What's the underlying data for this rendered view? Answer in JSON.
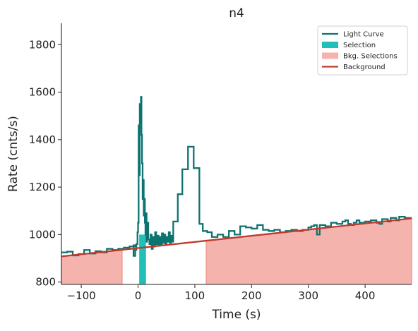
{
  "chart_data": {
    "type": "line",
    "title": "n4",
    "xlabel": "Time (s)",
    "ylabel": "Rate (cnts/s)",
    "xlim": [
      -135,
      482
    ],
    "ylim": [
      790,
      1890
    ],
    "x_ticks": [
      -100,
      0,
      100,
      200,
      300,
      400
    ],
    "y_ticks": [
      800,
      1000,
      1200,
      1400,
      1600,
      1800
    ],
    "legend_position": "top-right",
    "legend": [
      {
        "label": "Light Curve",
        "kind": "line",
        "color": "#0d7370"
      },
      {
        "label": "Selection",
        "kind": "patch",
        "color": "#20c0b8"
      },
      {
        "label": "Bkg. Selections",
        "kind": "patch",
        "color": "#f4b4ad"
      },
      {
        "label": "Background",
        "kind": "line",
        "color": "#c0392b"
      }
    ],
    "selection": {
      "range": [
        2,
        14
      ],
      "color": "#20c0b8"
    },
    "bkg_selections": {
      "ranges": [
        [
          -135,
          -28
        ],
        [
          120,
          482
        ]
      ],
      "color": "#f4b4ad",
      "edge_color": "#e8877d"
    },
    "background": {
      "x": [
        -135,
        482
      ],
      "y": [
        908,
        1068
      ],
      "color": "#c0392b"
    },
    "light_curve": {
      "color": "#0d7370",
      "steps": [
        [
          -135,
          925
        ],
        [
          -125,
          928
        ],
        [
          -115,
          912
        ],
        [
          -105,
          918
        ],
        [
          -95,
          935
        ],
        [
          -85,
          920
        ],
        [
          -75,
          930
        ],
        [
          -65,
          925
        ],
        [
          -55,
          940
        ],
        [
          -45,
          935
        ],
        [
          -35,
          940
        ],
        [
          -25,
          945
        ],
        [
          -15,
          950
        ],
        [
          -5,
          955
        ],
        [
          -8,
          910
        ],
        [
          -5,
          935
        ],
        [
          -3,
          960
        ],
        [
          -1,
          1010
        ],
        [
          0,
          1050
        ],
        [
          1,
          1460
        ],
        [
          2,
          1250
        ],
        [
          3,
          1550
        ],
        [
          4,
          1470
        ],
        [
          5,
          1580
        ],
        [
          6,
          1420
        ],
        [
          7,
          1300
        ],
        [
          8,
          1150
        ],
        [
          9,
          1230
        ],
        [
          10,
          1080
        ],
        [
          11,
          1150
        ],
        [
          12,
          1050
        ],
        [
          13,
          1000
        ],
        [
          14,
          1090
        ],
        [
          15,
          970
        ],
        [
          16,
          1050
        ],
        [
          18,
          980
        ],
        [
          20,
          960
        ],
        [
          22,
          1000
        ],
        [
          24,
          940
        ],
        [
          26,
          990
        ],
        [
          28,
          950
        ],
        [
          30,
          1010
        ],
        [
          32,
          960
        ],
        [
          34,
          995
        ],
        [
          36,
          955
        ],
        [
          38,
          990
        ],
        [
          40,
          960
        ],
        [
          42,
          1005
        ],
        [
          44,
          965
        ],
        [
          46,
          1000
        ],
        [
          48,
          960
        ],
        [
          50,
          990
        ],
        [
          52,
          970
        ],
        [
          54,
          1010
        ],
        [
          56,
          965
        ],
        [
          58,
          995
        ],
        [
          60,
          970
        ],
        [
          62,
          1055
        ],
        [
          70,
          1170
        ],
        [
          78,
          1275
        ],
        [
          88,
          1370
        ],
        [
          98,
          1280
        ],
        [
          108,
          1045
        ],
        [
          114,
          1015
        ],
        [
          122,
          1010
        ],
        [
          130,
          990
        ],
        [
          140,
          1000
        ],
        [
          150,
          990
        ],
        [
          160,
          1015
        ],
        [
          170,
          1000
        ],
        [
          180,
          1035
        ],
        [
          190,
          1030
        ],
        [
          200,
          1025
        ],
        [
          210,
          1040
        ],
        [
          220,
          1020
        ],
        [
          230,
          1015
        ],
        [
          240,
          1020
        ],
        [
          250,
          1010
        ],
        [
          260,
          1015
        ],
        [
          270,
          1020
        ],
        [
          280,
          1015
        ],
        [
          290,
          1020
        ],
        [
          300,
          1030
        ],
        [
          305,
          1035
        ],
        [
          310,
          1040
        ],
        [
          315,
          1000
        ],
        [
          320,
          1040
        ],
        [
          330,
          1035
        ],
        [
          340,
          1050
        ],
        [
          350,
          1045
        ],
        [
          360,
          1055
        ],
        [
          365,
          1060
        ],
        [
          370,
          1045
        ],
        [
          375,
          1040
        ],
        [
          380,
          1050
        ],
        [
          385,
          1060
        ],
        [
          390,
          1050
        ],
        [
          400,
          1055
        ],
        [
          410,
          1060
        ],
        [
          420,
          1050
        ],
        [
          425,
          1045
        ],
        [
          430,
          1065
        ],
        [
          440,
          1055
        ],
        [
          445,
          1070
        ],
        [
          455,
          1060
        ],
        [
          460,
          1075
        ],
        [
          470,
          1070
        ],
        [
          480,
          1070
        ]
      ]
    }
  }
}
